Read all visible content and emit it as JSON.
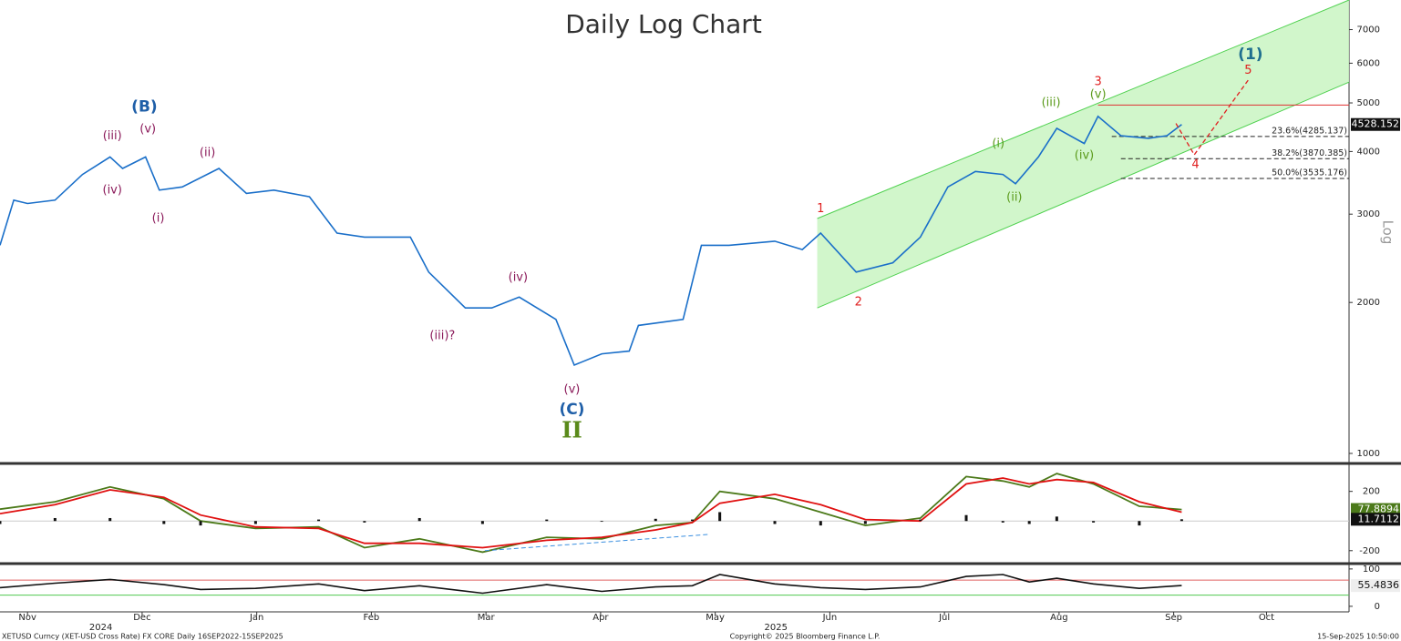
{
  "chart_data": [
    {
      "type": "line",
      "title": "Daily Log Chart",
      "y_label": "Log",
      "log_scale": true,
      "xlim": [
        0.26,
        12.03
      ],
      "ylim": [
        963,
        8020
      ],
      "yticks": [
        1000,
        2000,
        3000,
        4000,
        5000,
        6000,
        7000
      ],
      "xticks": [
        {
          "value": 0.5,
          "label": "Nov"
        },
        {
          "value": 1.5,
          "label": "Dec"
        },
        {
          "value": 2.5,
          "label": "Jan"
        },
        {
          "value": 3.5,
          "label": "Feb"
        },
        {
          "value": 4.5,
          "label": "Mar"
        },
        {
          "value": 5.5,
          "label": "Apr"
        },
        {
          "value": 6.5,
          "label": "May"
        },
        {
          "value": 7.5,
          "label": "Jun"
        },
        {
          "value": 8.5,
          "label": "Jul"
        },
        {
          "value": 9.5,
          "label": "Aug"
        },
        {
          "value": 10.5,
          "label": "Sep"
        },
        {
          "value": 11.31,
          "label": "Oct"
        }
      ],
      "year_ticks": [
        {
          "value": 1.14,
          "label": "2024"
        },
        {
          "value": 7.03,
          "label": "2025"
        }
      ],
      "series": [
        {
          "color": "#1a6fc9",
          "x": [
            0.26,
            0.38,
            0.5,
            0.74,
            0.98,
            1.22,
            1.33,
            1.53,
            1.65,
            1.85,
            2.17,
            2.41,
            2.65,
            2.96,
            3.2,
            3.44,
            3.84,
            4.0,
            4.32,
            4.55,
            4.79,
            5.11,
            5.27,
            5.51,
            5.75,
            5.83,
            6.22,
            6.38,
            6.62,
            7.02,
            7.26,
            7.42,
            7.73,
            8.05,
            8.29,
            8.53,
            8.77,
            9.01,
            9.12,
            9.32,
            9.48,
            9.72,
            9.84,
            10.04,
            10.28,
            10.44,
            10.57
          ],
          "values": [
            2600,
            3200,
            3150,
            3200,
            3600,
            3900,
            3700,
            3900,
            3350,
            3400,
            3700,
            3300,
            3350,
            3250,
            2750,
            2700,
            2700,
            2300,
            1950,
            1950,
            2050,
            1850,
            1500,
            1580,
            1600,
            1800,
            1850,
            2600,
            2600,
            2650,
            2550,
            2750,
            2300,
            2400,
            2700,
            3400,
            3650,
            3600,
            3450,
            3900,
            4450,
            4150,
            4700,
            4300,
            4250,
            4300,
            4528.152
          ]
        }
      ],
      "channel": {
        "color": "#4fd14f",
        "fill": "#c9f5c2",
        "x": [
          7.39,
          12.03
        ],
        "upper": [
          2940,
          8020
        ],
        "lower": [
          1950,
          5500
        ]
      },
      "projection": {
        "color": "#e02020",
        "x": [
          10.52,
          10.68,
          11.15
        ],
        "values": [
          4550,
          3940,
          5550
        ]
      },
      "resistance": {
        "color": "#e03030",
        "x": [
          9.84,
          12.03
        ],
        "value": 4950
      },
      "fib_levels": [
        {
          "label": "23.6%(4285.137)",
          "value": 4285.137,
          "x": 9.96
        },
        {
          "label": "38.2%(3870.385)",
          "value": 3870.385,
          "x": 10.04
        },
        {
          "label": "50.0%(3535.176)",
          "value": 3535.176,
          "x": 10.04
        }
      ],
      "annotations": [
        {
          "text": "(B)",
          "x": 1.52,
          "y": 4910,
          "color": "#1f5fa8"
        },
        {
          "text": "(iii)",
          "x": 1.24,
          "y": 4290,
          "color": "#8b1a5a"
        },
        {
          "text": "(v)",
          "x": 1.55,
          "y": 4430,
          "color": "#8b1a5a"
        },
        {
          "text": "(iv)",
          "x": 1.24,
          "y": 3350,
          "color": "#8b1a5a"
        },
        {
          "text": "(i)",
          "x": 1.64,
          "y": 2940,
          "color": "#8b1a5a"
        },
        {
          "text": "(ii)",
          "x": 2.07,
          "y": 3970,
          "color": "#8b1a5a"
        },
        {
          "text": "(iv)",
          "x": 4.78,
          "y": 2240,
          "color": "#8b1a5a"
        },
        {
          "text": "(iii)?",
          "x": 4.12,
          "y": 1716,
          "color": "#8b1a5a"
        },
        {
          "text": "(v)",
          "x": 5.25,
          "y": 1340,
          "color": "#8b1a5a"
        },
        {
          "text": "(C)",
          "x": 5.25,
          "y": 1222,
          "color": "#1f5fa8"
        },
        {
          "text": "II",
          "x": 5.25,
          "y": 1105,
          "color": "#5a8a1a"
        },
        {
          "text": "1",
          "x": 7.42,
          "y": 3075,
          "color": "#e02020"
        },
        {
          "text": "2",
          "x": 7.75,
          "y": 2000,
          "color": "#e02020"
        },
        {
          "text": "3",
          "x": 9.84,
          "y": 5500,
          "color": "#e02020"
        },
        {
          "text": "(i)",
          "x": 8.97,
          "y": 4140,
          "color": "#5a9a1a"
        },
        {
          "text": "(ii)",
          "x": 9.11,
          "y": 3240,
          "color": "#5a9a1a"
        },
        {
          "text": "(iii)",
          "x": 9.43,
          "y": 5000,
          "color": "#5a9a1a"
        },
        {
          "text": "(v)",
          "x": 9.84,
          "y": 5190,
          "color": "#5a9a1a"
        },
        {
          "text": "(iv)",
          "x": 9.72,
          "y": 3925,
          "color": "#5a9a1a"
        },
        {
          "text": "4",
          "x": 10.69,
          "y": 3760,
          "color": "#e02020"
        },
        {
          "text": "5",
          "x": 11.15,
          "y": 5800,
          "color": "#e02020"
        },
        {
          "text": "(1)",
          "x": 11.17,
          "y": 6240,
          "color": "#1f6f8f"
        }
      ]
    },
    {
      "type": "macd",
      "ylim": [
        -275,
        370
      ],
      "yticks": [
        -200,
        200
      ],
      "x": [
        0.26,
        0.74,
        1.22,
        1.69,
        2.01,
        2.49,
        3.04,
        3.44,
        3.92,
        4.47,
        5.03,
        5.51,
        5.98,
        6.3,
        6.54,
        7.02,
        7.42,
        7.81,
        8.29,
        8.69,
        9.01,
        9.24,
        9.48,
        9.8,
        10.2,
        10.57
      ],
      "series": [
        {
          "type": "line",
          "color": "#4c7a1a",
          "values": [
            80,
            130,
            230,
            150,
            0,
            -50,
            -40,
            -180,
            -120,
            -210,
            -110,
            -120,
            -30,
            -10,
            200,
            150,
            60,
            -30,
            20,
            300,
            270,
            230,
            320,
            250,
            100,
            77.8894
          ]
        },
        {
          "type": "line",
          "color": "#e01010",
          "values": [
            50,
            110,
            210,
            160,
            40,
            -40,
            -50,
            -150,
            -150,
            -180,
            -130,
            -110,
            -60,
            -10,
            120,
            180,
            110,
            10,
            0,
            250,
            290,
            250,
            280,
            260,
            130,
            60
          ]
        },
        {
          "type": "bar",
          "color": "#111111",
          "values": [
            -20,
            20,
            20,
            -20,
            -30,
            -20,
            10,
            -10,
            20,
            -20,
            10,
            -5,
            15,
            10,
            60,
            -20,
            -30,
            -20,
            10,
            40,
            -10,
            -20,
            30,
            -10,
            -30,
            11.7112
          ]
        }
      ],
      "trend_line": {
        "color": "#3a8fe0",
        "x": [
          4.49,
          6.45
        ],
        "values": [
          -200,
          -90
        ]
      }
    },
    {
      "type": "rsi",
      "ylim": [
        -10,
        107
      ],
      "yticks": [
        0,
        100
      ],
      "x": [
        0.26,
        0.74,
        1.22,
        1.69,
        2.01,
        2.49,
        3.04,
        3.44,
        3.92,
        4.47,
        5.03,
        5.51,
        5.98,
        6.3,
        6.54,
        7.02,
        7.42,
        7.81,
        8.29,
        8.69,
        9.01,
        9.24,
        9.48,
        9.8,
        10.2,
        10.57
      ],
      "series": [
        {
          "color": "#111111",
          "values": [
            50,
            62,
            72,
            58,
            45,
            48,
            60,
            42,
            55,
            35,
            58,
            40,
            52,
            55,
            85,
            60,
            50,
            45,
            52,
            80,
            85,
            65,
            75,
            60,
            48,
            55.4836
          ]
        }
      ],
      "levels": [
        {
          "value": 70,
          "color": "#e06060"
        },
        {
          "value": 30,
          "color": "#50c850"
        }
      ]
    }
  ],
  "footer": {
    "left": "XETUSD Curncy (XET-USD Cross Rate) FX CORE  Daily 16SEP2022-15SEP2025",
    "center": "Copyright© 2025 Bloomberg Finance L.P.",
    "right": "15-Sep-2025 10:50:00"
  }
}
